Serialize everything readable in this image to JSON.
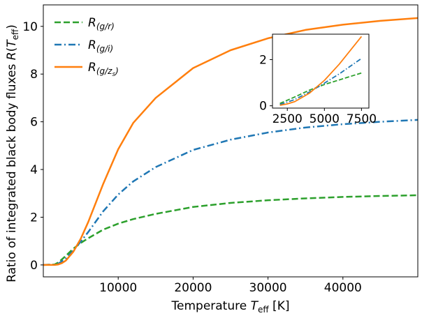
{
  "chart_data": [
    {
      "type": "line",
      "role": "main",
      "xlabel": "Temperature T_eff [K]",
      "xlabel_parts": {
        "prefix": "Temperature ",
        "var": "T",
        "sub": "eff",
        "suffix": " [K]"
      },
      "ylabel": "Ratio of integrated black body fluxes  R(T_eff)",
      "ylabel_parts": {
        "prefix": "Ratio of integrated black body fluxes  ",
        "var": "R",
        "open": "(",
        "var2": "T",
        "sub": "eff",
        "close": ")"
      },
      "xlim": [
        0,
        50000
      ],
      "ylim": [
        -0.5,
        10.9
      ],
      "xticks": [
        10000,
        20000,
        30000,
        40000
      ],
      "xtick_labels": [
        "10000",
        "20000",
        "30000",
        "40000"
      ],
      "yticks": [
        0,
        2,
        4,
        6,
        8,
        10
      ],
      "ytick_labels": [
        "0",
        "2",
        "4",
        "6",
        "8",
        "10"
      ],
      "grid": false,
      "legend_position": "upper-left",
      "series": [
        {
          "name": "R(g/r)",
          "label_main": "R",
          "label_sub": "(g/r)",
          "color": "#2ca02c",
          "style": "dashed",
          "x": [
            0,
            1500,
            2000,
            3000,
            4000,
            5000,
            6000,
            8000,
            10000,
            12000,
            15000,
            20000,
            25000,
            30000,
            35000,
            40000,
            45000,
            50000
          ],
          "y": [
            0.0,
            0.02,
            0.1,
            0.38,
            0.68,
            0.92,
            1.12,
            1.48,
            1.73,
            1.92,
            2.14,
            2.43,
            2.6,
            2.71,
            2.79,
            2.85,
            2.89,
            2.92
          ]
        },
        {
          "name": "R(g/i)",
          "label_main": "R",
          "label_sub": "(g/i)",
          "color": "#1f77b4",
          "style": "dashdot",
          "x": [
            0,
            1500,
            2000,
            3000,
            4000,
            5000,
            6000,
            8000,
            10000,
            12000,
            15000,
            20000,
            25000,
            30000,
            35000,
            40000,
            45000,
            50000
          ],
          "y": [
            0.0,
            0.01,
            0.05,
            0.27,
            0.6,
            0.98,
            1.38,
            2.25,
            2.95,
            3.5,
            4.1,
            4.82,
            5.25,
            5.55,
            5.76,
            5.9,
            6.0,
            6.08
          ]
        },
        {
          "name": "R(g/z_s)",
          "label_main": "R",
          "label_sub": "(g/z",
          "label_subsub": "s",
          "label_close": ")",
          "color": "#ff7f0e",
          "style": "solid",
          "x": [
            0,
            1500,
            2000,
            2500,
            3000,
            4000,
            5000,
            6000,
            7000,
            8000,
            10000,
            12000,
            15000,
            20000,
            25000,
            30000,
            35000,
            40000,
            45000,
            50000
          ],
          "y": [
            0.0,
            0.0,
            0.02,
            0.08,
            0.18,
            0.55,
            1.1,
            1.8,
            2.6,
            3.4,
            4.85,
            5.95,
            7.0,
            8.25,
            9.0,
            9.5,
            9.85,
            10.07,
            10.23,
            10.35
          ]
        }
      ]
    },
    {
      "type": "line",
      "role": "inset",
      "xlim": [
        1500,
        8000
      ],
      "ylim": [
        -0.1,
        3.1
      ],
      "xticks": [
        2500,
        5000,
        7500
      ],
      "xtick_labels": [
        "2500",
        "5000",
        "7500"
      ],
      "yticks": [
        0,
        2
      ],
      "ytick_labels": [
        "0",
        "2"
      ],
      "grid": false,
      "series": [
        {
          "name": "R(g/r)",
          "color": "#2ca02c",
          "style": "dashed",
          "x": [
            2000,
            3000,
            4000,
            5000,
            6000,
            7500
          ],
          "y": [
            0.1,
            0.38,
            0.68,
            0.92,
            1.12,
            1.42
          ]
        },
        {
          "name": "R(g/i)",
          "color": "#1f77b4",
          "style": "dashdot",
          "x": [
            2000,
            3000,
            4000,
            5000,
            6000,
            7500
          ],
          "y": [
            0.05,
            0.27,
            0.6,
            0.98,
            1.38,
            2.05
          ]
        },
        {
          "name": "R(g/z_s)",
          "color": "#ff7f0e",
          "style": "solid",
          "x": [
            2000,
            2500,
            3000,
            4000,
            5000,
            6000,
            7000,
            7500
          ],
          "y": [
            0.02,
            0.08,
            0.18,
            0.55,
            1.1,
            1.8,
            2.6,
            3.0
          ]
        }
      ]
    }
  ]
}
